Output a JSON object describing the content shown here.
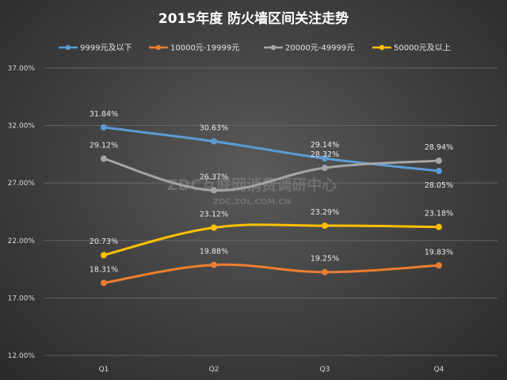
{
  "chart_data": {
    "type": "line",
    "title": "2015年度 防火墙区间关注走势",
    "categories": [
      "Q1",
      "Q2",
      "Q3",
      "Q4"
    ],
    "ylim": [
      12,
      37
    ],
    "yticks": [
      12,
      17,
      22,
      27,
      32,
      37
    ],
    "ytick_labels": [
      "12.00%",
      "17.00%",
      "22.00%",
      "27.00%",
      "32.00%",
      "37.00%"
    ],
    "series": [
      {
        "name": "9999元及以下",
        "color": "#5b9bd5",
        "values": [
          31.84,
          30.63,
          29.14,
          28.05
        ],
        "labels": [
          "31.84%",
          "30.63%",
          "29.14%",
          "28.05%"
        ],
        "label_pos": [
          "above",
          "above",
          "above",
          "below"
        ]
      },
      {
        "name": "10000元-19999元",
        "color": "#ed7d31",
        "values": [
          18.31,
          19.88,
          19.25,
          19.83
        ],
        "labels": [
          "18.31%",
          "19.88%",
          "19.25%",
          "19.83%"
        ],
        "label_pos": [
          "above",
          "above",
          "above",
          "above"
        ]
      },
      {
        "name": "20000元-49999元",
        "color": "#a5a5a5",
        "values": [
          29.12,
          26.37,
          28.32,
          28.94
        ],
        "labels": [
          "29.12%",
          "26.37%",
          "28.32%",
          "28.94%"
        ],
        "label_pos": [
          "above",
          "above",
          "above",
          "above"
        ]
      },
      {
        "name": "50000元及以上",
        "color": "#ffc000",
        "values": [
          20.73,
          23.12,
          23.29,
          23.18
        ],
        "labels": [
          "20.73%",
          "23.12%",
          "23.29%",
          "23.18%"
        ],
        "label_pos": [
          "above",
          "above",
          "above",
          "above"
        ]
      }
    ]
  },
  "watermark": {
    "main": "ZDC互联网消费调研中心",
    "sub": "ZDC.ZOL.COM.CN"
  }
}
